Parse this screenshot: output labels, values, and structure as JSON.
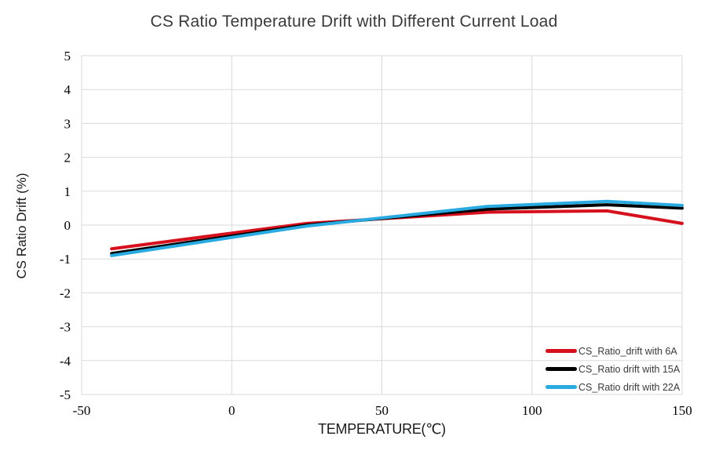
{
  "chart_data": {
    "type": "line",
    "title": "CS Ratio Temperature Drift with Different Current Load",
    "xlabel": "TEMPERATURE(℃)",
    "ylabel": "CS Ratio Drift (%)",
    "x": [
      -40,
      25,
      85,
      125,
      150
    ],
    "series": [
      {
        "name": "CS_Ratio_drift with 6A",
        "color": "#d7101e",
        "values": [
          -0.7,
          0.05,
          0.38,
          0.42,
          0.05
        ]
      },
      {
        "name": "CS_Ratio drift with 15A",
        "color": "#000000",
        "values": [
          -0.84,
          0.0,
          0.47,
          0.6,
          0.5
        ]
      },
      {
        "name": "CS_Ratio drift with 22A",
        "color": "#29abe2",
        "values": [
          -0.9,
          -0.03,
          0.55,
          0.7,
          0.58
        ]
      }
    ],
    "xlim": [
      -50,
      150
    ],
    "ylim": [
      -5,
      5
    ],
    "x_ticks": [
      -50,
      0,
      50,
      100,
      150
    ],
    "y_ticks": [
      -5,
      -4,
      -3,
      -2,
      -1,
      0,
      1,
      2,
      3,
      4,
      5
    ],
    "grid": true,
    "legend_position": "bottom-right"
  },
  "colors": {
    "grid": "#d9d9d9",
    "plot_border": "#d9d9d9",
    "title_text": "#3a3a3a",
    "tick_text": "#000000",
    "legend_text": "#3a3a3a"
  }
}
